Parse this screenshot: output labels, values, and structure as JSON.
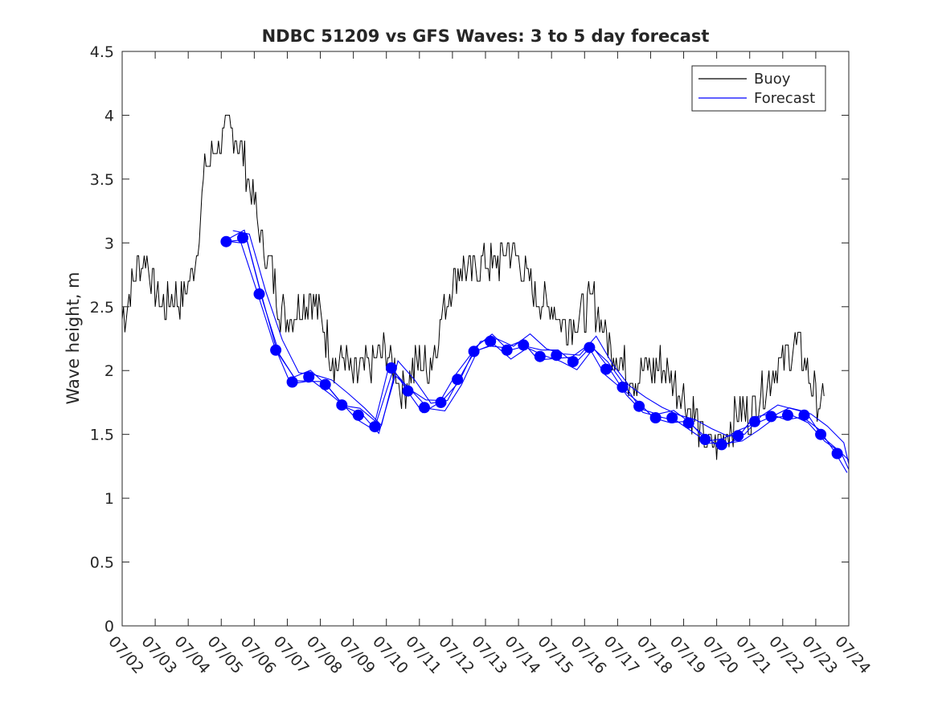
{
  "chart_data": {
    "type": "line",
    "title": "NDBC 51209 vs GFS Waves: 3 to 5 day forecast",
    "xlabel": "",
    "ylabel": "Wave height, m",
    "xlim": [
      "07/02",
      "07/24"
    ],
    "ylim": [
      0,
      4.5
    ],
    "x_ticks": [
      "07/02",
      "07/03",
      "07/04",
      "07/05",
      "07/06",
      "07/07",
      "07/08",
      "07/09",
      "07/10",
      "07/11",
      "07/12",
      "07/13",
      "07/14",
      "07/15",
      "07/16",
      "07/17",
      "07/18",
      "07/19",
      "07/20",
      "07/21",
      "07/22",
      "07/23",
      "07/24"
    ],
    "y_ticks": [
      "0",
      "0.5",
      "1",
      "1.5",
      "2",
      "2.5",
      "3",
      "3.5",
      "4",
      "4.5"
    ],
    "grid": false,
    "legend": {
      "position": "top-right",
      "entries": [
        "Buoy",
        "Forecast"
      ]
    },
    "colors": {
      "buoy": "#000000",
      "forecast": "#0000ff",
      "axis": "#262626"
    },
    "series": [
      {
        "name": "Buoy",
        "x_day_of_july": [
          2.0,
          2.25,
          2.5,
          2.75,
          3.0,
          3.25,
          3.5,
          3.75,
          4.0,
          4.25,
          4.5,
          4.75,
          5.0,
          5.25,
          5.5,
          5.75,
          6.0,
          6.25,
          6.5,
          6.75,
          7.0,
          7.25,
          7.5,
          7.75,
          8.0,
          8.25,
          8.5,
          8.75,
          9.0,
          9.25,
          9.5,
          9.75,
          10.0,
          10.25,
          10.5,
          10.75,
          11.0,
          11.25,
          11.5,
          11.75,
          12.0,
          12.25,
          12.5,
          12.75,
          13.0,
          13.25,
          13.5,
          13.75,
          14.0,
          14.25,
          14.5,
          14.75,
          15.0,
          15.25,
          15.5,
          15.75,
          16.0,
          16.25,
          16.5,
          16.75,
          17.0,
          17.25,
          17.5,
          17.75,
          18.0,
          18.25,
          18.5,
          18.75,
          19.0,
          19.25,
          19.5,
          19.75,
          20.0,
          20.25,
          20.5,
          20.75,
          21.0,
          21.25,
          21.5,
          21.75,
          22.0,
          22.25,
          22.5,
          22.75,
          23.0,
          23.25
        ],
        "values": [
          2.4,
          2.6,
          2.8,
          2.9,
          2.6,
          2.5,
          2.6,
          2.55,
          2.7,
          2.9,
          3.6,
          3.7,
          3.8,
          3.9,
          3.8,
          3.6,
          3.3,
          3.0,
          2.8,
          2.5,
          2.4,
          2.5,
          2.55,
          2.6,
          2.4,
          2.2,
          2.05,
          2.1,
          1.95,
          2.0,
          2.05,
          2.1,
          2.15,
          2.0,
          1.85,
          1.95,
          2.1,
          2.0,
          2.2,
          2.5,
          2.7,
          2.8,
          2.75,
          2.8,
          2.85,
          2.8,
          2.9,
          2.95,
          2.9,
          2.7,
          2.6,
          2.5,
          2.5,
          2.4,
          2.35,
          2.4,
          2.45,
          2.55,
          2.4,
          2.2,
          2.1,
          2.0,
          1.95,
          2.0,
          2.0,
          2.05,
          2.0,
          1.9,
          1.8,
          1.7,
          1.5,
          1.4,
          1.4,
          1.5,
          1.6,
          1.7,
          1.65,
          1.8,
          1.9,
          2.0,
          2.1,
          2.15,
          2.2,
          2.0,
          1.8,
          1.7
        ]
      },
      {
        "name": "Forecast",
        "x_day_of_july": [
          5.15,
          5.65,
          6.15,
          6.65,
          7.15,
          7.65,
          8.15,
          8.65,
          9.15,
          9.65,
          10.15,
          10.65,
          11.15,
          11.65,
          12.15,
          12.65,
          13.15,
          13.65,
          14.15,
          14.65,
          15.15,
          15.65,
          16.15,
          16.65,
          17.15,
          17.65,
          18.15,
          18.65,
          19.15,
          19.65,
          20.15,
          20.65,
          21.15,
          21.65,
          22.15,
          22.65,
          23.15,
          23.65,
          24.0
        ],
        "values": [
          3.01,
          3.04,
          2.6,
          2.16,
          1.91,
          1.95,
          1.89,
          1.73,
          1.65,
          1.56,
          2.02,
          1.84,
          1.71,
          1.75,
          1.93,
          2.15,
          2.23,
          2.16,
          2.2,
          2.11,
          2.12,
          2.07,
          2.18,
          2.01,
          1.87,
          1.72,
          1.63,
          1.63,
          1.59,
          1.46,
          1.42,
          1.49,
          1.6,
          1.64,
          1.65,
          1.65,
          1.5,
          1.35,
          1.24
        ]
      }
    ]
  }
}
